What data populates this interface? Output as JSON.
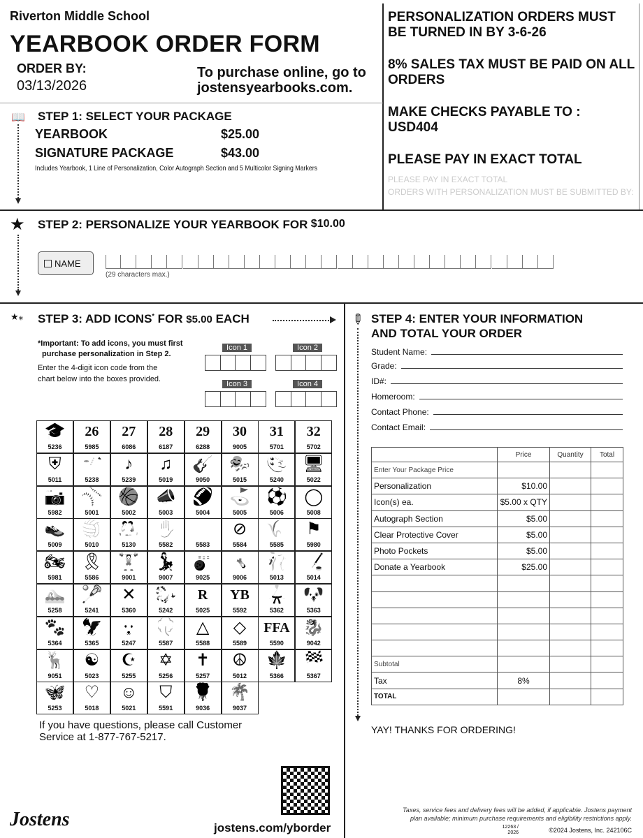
{
  "header": {
    "school": "Riverton Middle School",
    "title": "YEARBOOK ORDER FORM",
    "order_by_label": "ORDER BY:",
    "order_by_date": "03/13/2026",
    "online_line1": "To purchase online, go to",
    "online_line2": "jostensyearbooks.com."
  },
  "notices": {
    "n1": "PERSONALIZATION ORDERS MUST BE TURNED IN BY 3-6-26",
    "ghost1": "PLEASE PAY IN EXACT TOTAL",
    "ghost2": "ORDERS WITH PERSONALIZATION MUST BE SUBMITTED BY:",
    "n2": "8% SALES TAX MUST BE PAID ON ALL ORDERS",
    "n3a": "MAKE CHECKS PAYABLE TO :",
    "n3b": "USD404",
    "n4": "PLEASE PAY IN EXACT TOTAL"
  },
  "step1": {
    "title": "STEP 1: SELECT YOUR PACKAGE",
    "items": [
      {
        "name": "YEARBOOK",
        "price": "$25.00"
      },
      {
        "name": "SIGNATURE PACKAGE",
        "price": "$43.00"
      }
    ],
    "note": "Includes Yearbook, 1 Line of Personalization, Color Autograph Section and 5 Multicolor Signing Markers"
  },
  "step2": {
    "title": "STEP 2: PERSONALIZE YOUR YEARBOOK FOR",
    "price": "$10.00",
    "name_button": "NAME",
    "max_chars": 29,
    "hint": "(29 characters max.)"
  },
  "step3": {
    "title": "STEP 3: ADD ICONS",
    "asterisk": "*",
    "for": "FOR",
    "price": "$5.00",
    "each": "EACH",
    "important1": "*Important: To add icons, you must first",
    "important2": "purchase personalization in Step 2.",
    "instr1": "Enter the 4-digit icon code from the",
    "instr2": "chart below into the boxes provided.",
    "icon_labels": [
      "Icon 1",
      "Icon 2",
      "Icon 3",
      "Icon 4"
    ],
    "icons": [
      {
        "code": "5236",
        "icon": "graduation-cap",
        "g": "🎓"
      },
      {
        "code": "5985",
        "icon": "year-2026",
        "g": "26"
      },
      {
        "code": "6086",
        "icon": "year-2027",
        "g": "27"
      },
      {
        "code": "6187",
        "icon": "year-2028",
        "g": "28"
      },
      {
        "code": "6288",
        "icon": "year-2029",
        "g": "29"
      },
      {
        "code": "9005",
        "icon": "year-2030",
        "g": "30"
      },
      {
        "code": "5701",
        "icon": "year-2031",
        "g": "31"
      },
      {
        "code": "5702",
        "icon": "year-2032",
        "g": "32"
      },
      {
        "code": "5011",
        "icon": "crest",
        "g": "⛨"
      },
      {
        "code": "5238",
        "icon": "saxophone",
        "g": "🎷"
      },
      {
        "code": "5239",
        "icon": "singers",
        "g": "♪"
      },
      {
        "code": "5019",
        "icon": "music-notes",
        "g": "♫"
      },
      {
        "code": "9050",
        "icon": "guitar",
        "g": "🎸"
      },
      {
        "code": "5015",
        "icon": "drama-masks",
        "g": "🎭"
      },
      {
        "code": "5240",
        "icon": "art-palette",
        "g": "🎨"
      },
      {
        "code": "5022",
        "icon": "computer",
        "g": "🖥"
      },
      {
        "code": "5982",
        "icon": "camera",
        "g": "📷"
      },
      {
        "code": "5001",
        "icon": "baseball",
        "g": "⚾"
      },
      {
        "code": "5002",
        "icon": "basketball",
        "g": "🏀"
      },
      {
        "code": "5003",
        "icon": "megaphone",
        "g": "📣"
      },
      {
        "code": "5004",
        "icon": "football-helmet",
        "g": "🏈"
      },
      {
        "code": "5005",
        "icon": "golf",
        "g": "⛳"
      },
      {
        "code": "5006",
        "icon": "soccer-ball",
        "g": "⚽"
      },
      {
        "code": "5008",
        "icon": "tennis-ball",
        "g": "◯"
      },
      {
        "code": "5009",
        "icon": "winged-shoe",
        "g": "👟"
      },
      {
        "code": "5010",
        "icon": "volleyball",
        "g": "🏐"
      },
      {
        "code": "5130",
        "icon": "wrestling",
        "g": "🤼"
      },
      {
        "code": "5582",
        "icon": "hand",
        "g": "✋"
      },
      {
        "code": "5583",
        "icon": "earth-drop",
        "g": "💧"
      },
      {
        "code": "5584",
        "icon": "no-bullying",
        "g": "⊘"
      },
      {
        "code": "5585",
        "icon": "wheat",
        "g": "🌾"
      },
      {
        "code": "5980",
        "icon": "graduate-flag",
        "g": "⚑"
      },
      {
        "code": "5981",
        "icon": "motorcycle",
        "g": "🏍"
      },
      {
        "code": "5586",
        "icon": "ribbon",
        "g": "🎗"
      },
      {
        "code": "9001",
        "icon": "weights",
        "g": "🏋"
      },
      {
        "code": "9007",
        "icon": "dancer",
        "g": "💃"
      },
      {
        "code": "9025",
        "icon": "bowling",
        "g": "🎳"
      },
      {
        "code": "9006",
        "icon": "gymnast",
        "g": "🤸"
      },
      {
        "code": "5013",
        "icon": "ballet-shoes",
        "g": "🩰"
      },
      {
        "code": "5014",
        "icon": "hockey-puck",
        "g": "🏒"
      },
      {
        "code": "5258",
        "icon": "swimmer",
        "g": "🏊"
      },
      {
        "code": "5241",
        "icon": "lacrosse",
        "g": "🥍"
      },
      {
        "code": "5360",
        "icon": "hockey-sticks",
        "g": "✕"
      },
      {
        "code": "5242",
        "icon": "horse",
        "g": "🐎"
      },
      {
        "code": "5025",
        "icon": "letter-r",
        "g": "R"
      },
      {
        "code": "5592",
        "icon": "yb-staff",
        "g": "YB"
      },
      {
        "code": "5362",
        "icon": "karate",
        "g": "🥋"
      },
      {
        "code": "5363",
        "icon": "bulldog",
        "g": "🐶"
      },
      {
        "code": "5364",
        "icon": "paw",
        "g": "🐾"
      },
      {
        "code": "5365",
        "icon": "eagle",
        "g": "🦅"
      },
      {
        "code": "5247",
        "icon": "wolf",
        "g": "🐺"
      },
      {
        "code": "5587",
        "icon": "four-h-clover",
        "g": "🍀"
      },
      {
        "code": "5588",
        "icon": "triangle-emblem",
        "g": "△"
      },
      {
        "code": "5589",
        "icon": "diamond-emblem",
        "g": "◇"
      },
      {
        "code": "5590",
        "icon": "ffa",
        "g": "FFA"
      },
      {
        "code": "9042",
        "icon": "dragon",
        "g": "🐉"
      },
      {
        "code": "9051",
        "icon": "deer",
        "g": "🦌"
      },
      {
        "code": "5023",
        "icon": "yin-yang",
        "g": "☯"
      },
      {
        "code": "5255",
        "icon": "star-crescent",
        "g": "☪"
      },
      {
        "code": "5256",
        "icon": "star-of-david",
        "g": "✡"
      },
      {
        "code": "5257",
        "icon": "cross",
        "g": "✝"
      },
      {
        "code": "5012",
        "icon": "peace",
        "g": "☮"
      },
      {
        "code": "5366",
        "icon": "maple-leaf",
        "g": "🍁"
      },
      {
        "code": "5367",
        "icon": "flag",
        "g": "🏁"
      },
      {
        "code": "5253",
        "icon": "butterfly",
        "g": "🦋"
      },
      {
        "code": "5018",
        "icon": "hearts",
        "g": "♡"
      },
      {
        "code": "5021",
        "icon": "smiley",
        "g": "☺"
      },
      {
        "code": "5591",
        "icon": "keystone-torch",
        "g": "⛉"
      },
      {
        "code": "9036",
        "icon": "rose",
        "g": "🌹"
      },
      {
        "code": "9037",
        "icon": "palm-trees",
        "g": "🌴"
      }
    ],
    "questions1": "If you have questions, please call Customer",
    "questions2": "Service at 1-877-767-5217.",
    "url": "jostens.com/yborder"
  },
  "step4": {
    "title1": "STEP 4: ENTER YOUR INFORMATION",
    "title2": "AND TOTAL YOUR ORDER",
    "fields": [
      "Student Name:",
      "Grade:",
      "ID#:",
      "Homeroom:",
      "Contact Phone:",
      "Contact Email:"
    ],
    "columns": [
      "",
      "Price",
      "Quantity",
      "Total"
    ],
    "rows": [
      [
        "Enter Your Package Price",
        ""
      ],
      [
        "Personalization",
        "$10.00"
      ],
      [
        "Icon(s) ea.",
        "$5.00 x QTY"
      ],
      [
        "Autograph Section",
        "$5.00"
      ],
      [
        "Clear Protective Cover",
        "$5.00"
      ],
      [
        "Photo Pockets",
        "$5.00"
      ],
      [
        "Donate a Yearbook",
        "$25.00"
      ],
      [
        "",
        ""
      ],
      [
        "",
        ""
      ],
      [
        "",
        ""
      ],
      [
        "",
        ""
      ],
      [
        "",
        ""
      ],
      [
        "Subtotal",
        ""
      ],
      [
        "Tax",
        "8%"
      ],
      [
        "TOTAL",
        ""
      ]
    ],
    "thanks": "YAY! THANKS FOR ORDERING!"
  },
  "footer": {
    "brand": "Jostens",
    "disclaimer1": "Taxes, service fees and delivery fees will be added, if applicable. Jostens payment",
    "disclaimer2": "plan available; minimum purchase requirements and eligibility restrictions apply.",
    "code1": "12263 /",
    "code2": "2026",
    "copyright": "©2024 Jostens, Inc. 242106C"
  }
}
